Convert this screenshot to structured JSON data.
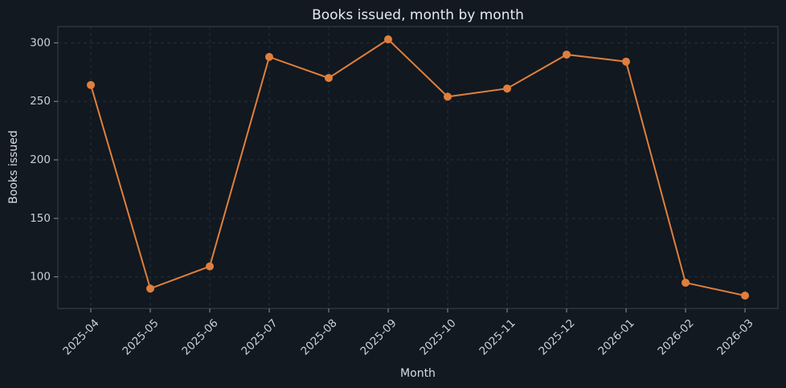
{
  "chart_data": {
    "type": "line",
    "title": "Books issued, month by month",
    "x_label": "Month",
    "y_label": "Books issued",
    "categories": [
      "2025-04",
      "2025-05",
      "2025-06",
      "2025-07",
      "2025-08",
      "2025-09",
      "2025-10",
      "2025-11",
      "2025-12",
      "2026-01",
      "2026-02",
      "2026-03"
    ],
    "series": [
      {
        "name": "Books issued",
        "color": "#e07f3c",
        "values": [
          264,
          90,
          109,
          288,
          270,
          303,
          254,
          261,
          290,
          284,
          95,
          84
        ]
      }
    ],
    "ylim": [
      73,
      314
    ],
    "yticks": [
      100,
      150,
      200,
      250,
      300
    ],
    "grid": true
  }
}
